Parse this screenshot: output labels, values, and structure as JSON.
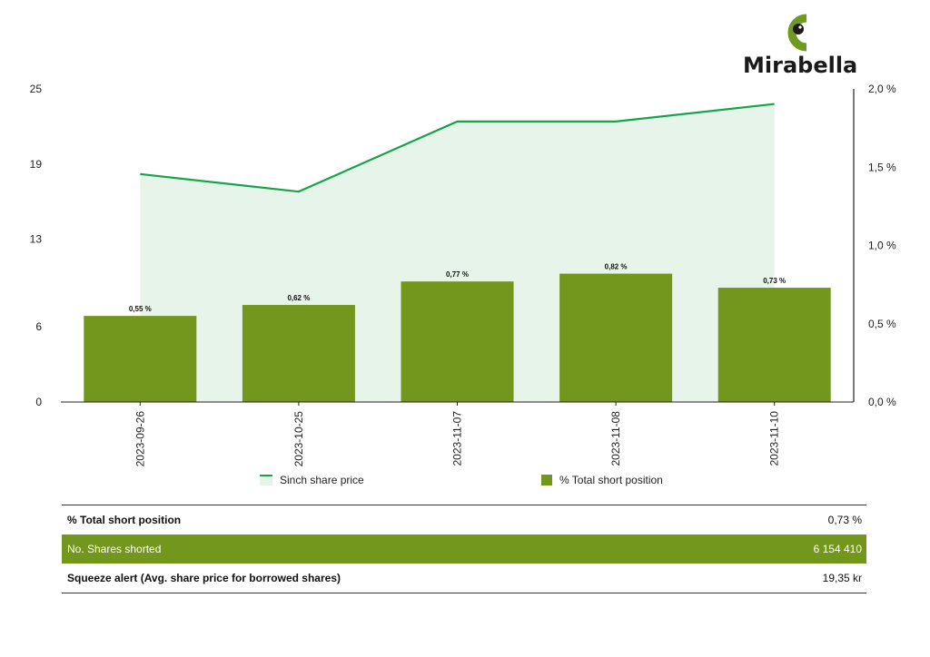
{
  "brand": {
    "name": "Mirabella",
    "colors": {
      "logo_green": "#6f9a1f",
      "logo_dark": "#1a1a1a"
    }
  },
  "colors": {
    "bar": "#73961d",
    "line": "#16a34a",
    "area": "#e6f4ea",
    "highlight_row": "#73961d"
  },
  "chart_data": {
    "type": "bar",
    "categories": [
      "2023-09-26",
      "2023-10-25",
      "2023-11-07",
      "2023-11-08",
      "2023-11-10"
    ],
    "series": [
      {
        "name": "% Total short position",
        "type": "bar",
        "axis": "right",
        "values": [
          0.55,
          0.62,
          0.77,
          0.82,
          0.73
        ],
        "labels": [
          "0,55 %",
          "0,62 %",
          "0,77 %",
          "0,82 %",
          "0,73 %"
        ]
      },
      {
        "name": "Sinch share price",
        "type": "area-line",
        "axis": "left",
        "values": [
          18.2,
          16.8,
          22.4,
          22.4,
          23.8
        ]
      }
    ],
    "y_left": {
      "ticks": [
        0,
        6,
        13,
        19,
        25
      ],
      "tick_labels": [
        "0",
        "6",
        "13",
        "19",
        "25"
      ],
      "range": [
        0,
        25
      ]
    },
    "y_right": {
      "ticks": [
        0,
        0.5,
        1.0,
        1.5,
        2.0
      ],
      "tick_labels": [
        "0,0 %",
        "0,5 %",
        "1,0 %",
        "1,5 %",
        "2,0 %"
      ],
      "range": [
        0,
        2.0
      ]
    },
    "grid": false,
    "legend_position": "bottom"
  },
  "summary": [
    {
      "label": "% Total short position",
      "value": "0,73 %",
      "highlight": false
    },
    {
      "label": "No. Shares shorted",
      "value": "6 154 410",
      "highlight": true
    },
    {
      "label": "Squeeze alert (Avg. share price for borrowed shares)",
      "value": "19,35 kr",
      "highlight": false
    }
  ]
}
